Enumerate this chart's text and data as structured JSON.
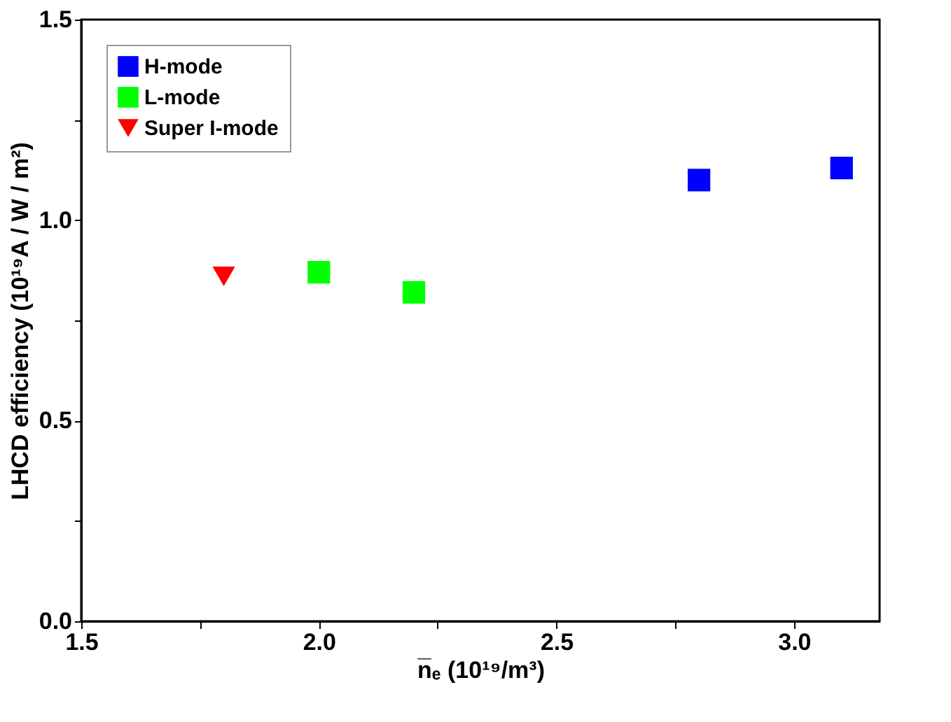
{
  "chart_data": {
    "type": "scatter",
    "xlabel": "n̅ₑ (10¹⁹/m³)",
    "ylabel": "LHCD efficiency (10¹⁹A / W / m²)",
    "xlim": [
      1.5,
      3.18
    ],
    "ylim": [
      0,
      1.5
    ],
    "xticks": [
      1.5,
      {
        "value": 1.75,
        "label": null
      },
      {
        "value": 2,
        "label": "2.0"
      },
      {
        "value": 2.25,
        "label": null
      },
      2.5,
      {
        "value": 2.75,
        "label": null
      },
      {
        "value": 3,
        "label": "3.0"
      }
    ],
    "yticks": [
      {
        "value": 0,
        "label": "0.0"
      },
      {
        "value": 0.25,
        "label": null
      },
      0.5,
      {
        "value": 0.75,
        "label": null
      },
      {
        "value": 1,
        "label": "1.0"
      },
      {
        "value": 1.25,
        "label": null
      },
      1.5
    ],
    "grid": false,
    "legend": "top left",
    "series": [
      {
        "name": "H-mode",
        "color": "#0000ff",
        "marker": "square",
        "x": [
          2.8,
          3.1
        ],
        "values": [
          1.1,
          1.13
        ]
      },
      {
        "name": "L-mode",
        "color": "#00ff00",
        "marker": "square",
        "x": [
          2.0,
          2.2
        ],
        "values": [
          0.87,
          0.82
        ]
      },
      {
        "name": "Super I-mode",
        "color": "#ff0000",
        "marker": "triangle",
        "x": [
          1.8
        ],
        "values": [
          0.86
        ]
      }
    ]
  }
}
